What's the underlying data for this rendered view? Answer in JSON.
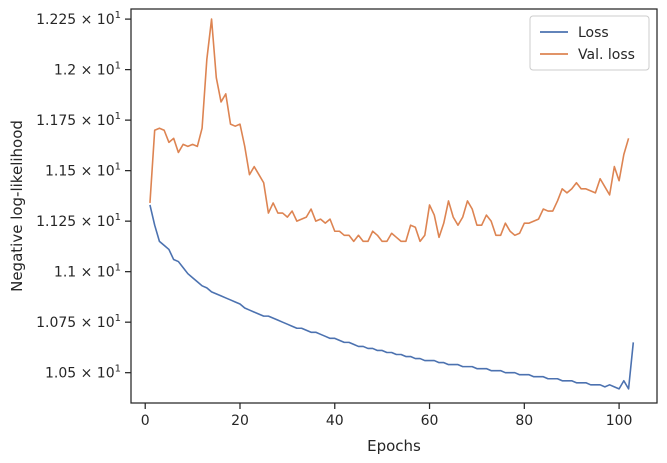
{
  "chart_data": {
    "type": "line",
    "xlabel": "Epochs",
    "ylabel": "Negative log-likelihood",
    "xlim": [
      -3,
      108
    ],
    "ylim": [
      10.35,
      12.3
    ],
    "x_ticks": [
      {
        "value": 0,
        "label": "0"
      },
      {
        "value": 20,
        "label": "20"
      },
      {
        "value": 40,
        "label": "40"
      },
      {
        "value": 60,
        "label": "60"
      },
      {
        "value": 80,
        "label": "80"
      },
      {
        "value": 100,
        "label": "100"
      }
    ],
    "y_ticks": [
      {
        "value": 10.5,
        "mantissa": "1.05",
        "times": "×",
        "base": "10",
        "exp": "1"
      },
      {
        "value": 10.75,
        "mantissa": "1.075",
        "times": "×",
        "base": "10",
        "exp": "1"
      },
      {
        "value": 11.0,
        "mantissa": "1.1",
        "times": "×",
        "base": "10",
        "exp": "1"
      },
      {
        "value": 11.25,
        "mantissa": "1.125",
        "times": "×",
        "base": "10",
        "exp": "1"
      },
      {
        "value": 11.5,
        "mantissa": "1.15",
        "times": "×",
        "base": "10",
        "exp": "1"
      },
      {
        "value": 11.75,
        "mantissa": "1.175",
        "times": "×",
        "base": "10",
        "exp": "1"
      },
      {
        "value": 12.0,
        "mantissa": "1.2",
        "times": "×",
        "base": "10",
        "exp": "1"
      },
      {
        "value": 12.25,
        "mantissa": "1.225",
        "times": "×",
        "base": "10",
        "exp": "1"
      }
    ],
    "x_start": 1,
    "legend_position": "top-right",
    "grid": false,
    "series": [
      {
        "name": "Loss",
        "color": "#4c72b0",
        "values": [
          11.33,
          11.23,
          11.15,
          11.13,
          11.11,
          11.06,
          11.05,
          11.02,
          10.99,
          10.97,
          10.95,
          10.93,
          10.92,
          10.9,
          10.89,
          10.88,
          10.87,
          10.86,
          10.85,
          10.84,
          10.82,
          10.81,
          10.8,
          10.79,
          10.78,
          10.78,
          10.77,
          10.76,
          10.75,
          10.74,
          10.73,
          10.72,
          10.72,
          10.71,
          10.7,
          10.7,
          10.69,
          10.68,
          10.67,
          10.67,
          10.66,
          10.65,
          10.65,
          10.64,
          10.63,
          10.63,
          10.62,
          10.62,
          10.61,
          10.61,
          10.6,
          10.6,
          10.59,
          10.59,
          10.58,
          10.58,
          10.57,
          10.57,
          10.56,
          10.56,
          10.56,
          10.55,
          10.55,
          10.54,
          10.54,
          10.54,
          10.53,
          10.53,
          10.53,
          10.52,
          10.52,
          10.52,
          10.51,
          10.51,
          10.51,
          10.5,
          10.5,
          10.5,
          10.49,
          10.49,
          10.49,
          10.48,
          10.48,
          10.48,
          10.47,
          10.47,
          10.47,
          10.46,
          10.46,
          10.46,
          10.45,
          10.45,
          10.45,
          10.44,
          10.44,
          10.44,
          10.43,
          10.44,
          10.43,
          10.42,
          10.46,
          10.42,
          10.65
        ]
      },
      {
        "name": "Val. loss",
        "color": "#dd8452",
        "values": [
          11.34,
          11.7,
          11.71,
          11.7,
          11.64,
          11.66,
          11.59,
          11.63,
          11.62,
          11.63,
          11.62,
          11.71,
          12.05,
          12.25,
          11.96,
          11.84,
          11.88,
          11.73,
          11.72,
          11.73,
          11.62,
          11.48,
          11.52,
          11.48,
          11.44,
          11.29,
          11.34,
          11.29,
          11.29,
          11.27,
          11.3,
          11.25,
          11.26,
          11.27,
          11.31,
          11.25,
          11.26,
          11.24,
          11.26,
          11.2,
          11.2,
          11.18,
          11.18,
          11.15,
          11.18,
          11.15,
          11.15,
          11.2,
          11.18,
          11.15,
          11.15,
          11.19,
          11.17,
          11.15,
          11.15,
          11.23,
          11.22,
          11.15,
          11.18,
          11.33,
          11.28,
          11.17,
          11.24,
          11.35,
          11.27,
          11.23,
          11.27,
          11.35,
          11.31,
          11.23,
          11.23,
          11.28,
          11.25,
          11.18,
          11.18,
          11.24,
          11.2,
          11.18,
          11.19,
          11.24,
          11.24,
          11.25,
          11.26,
          11.31,
          11.3,
          11.3,
          11.35,
          11.41,
          11.39,
          11.41,
          11.44,
          11.41,
          11.41,
          11.4,
          11.39,
          11.46,
          11.42,
          11.38,
          11.52,
          11.45,
          11.58,
          11.66
        ]
      }
    ]
  }
}
